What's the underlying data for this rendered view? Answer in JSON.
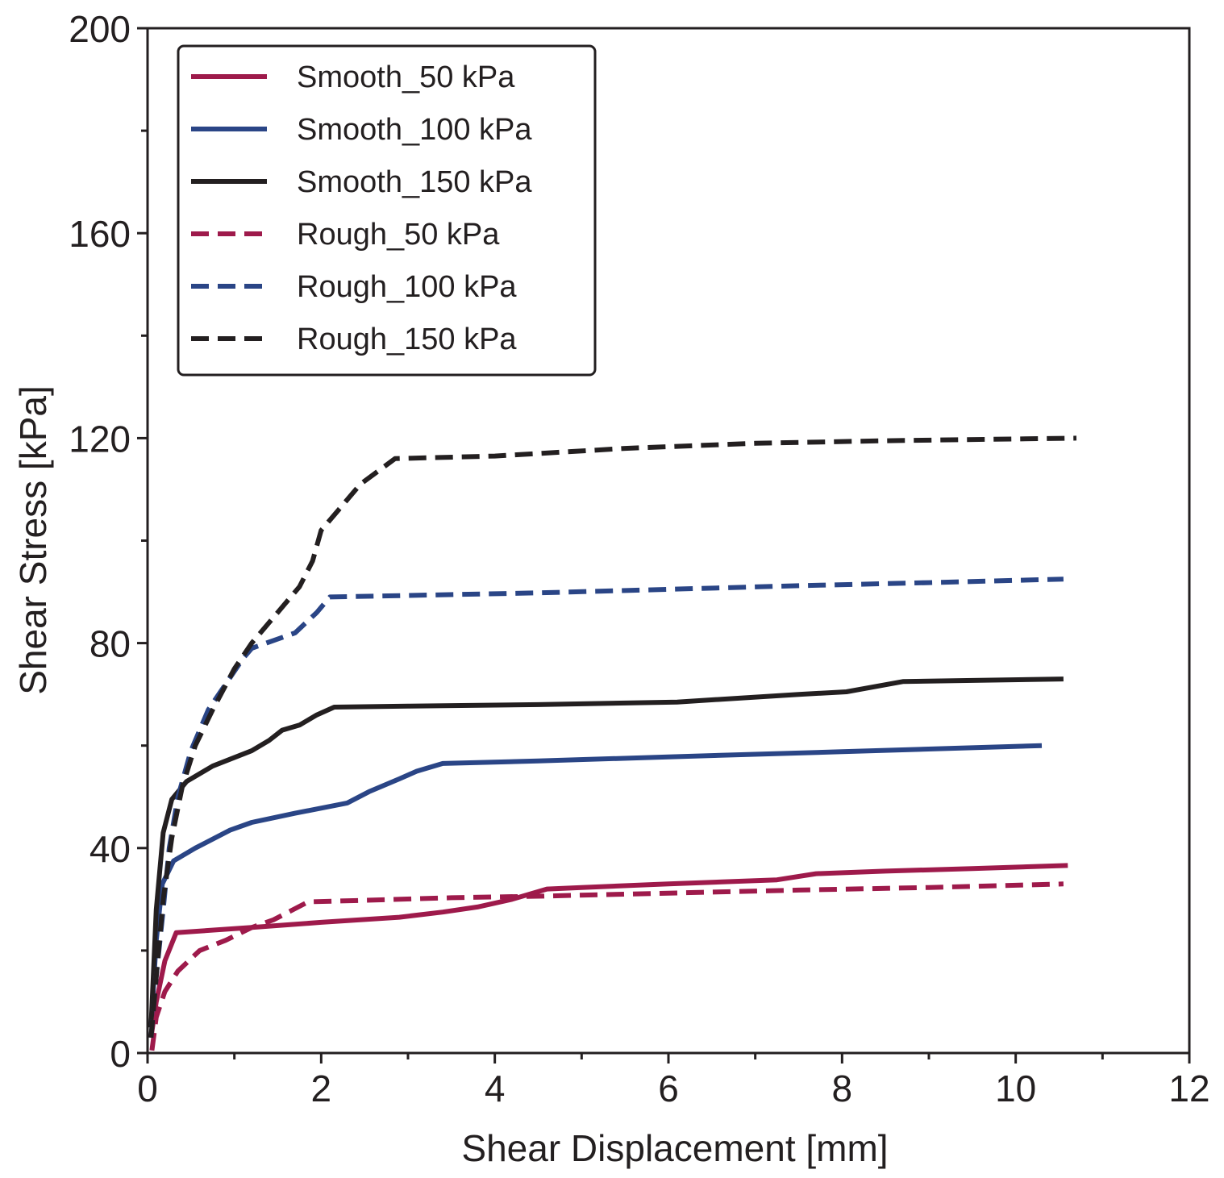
{
  "chart_data": {
    "type": "line",
    "title": "",
    "xlabel": "Shear Displacement [mm]",
    "ylabel": "Shear Stress [kPa]",
    "xlim": [
      0,
      12
    ],
    "ylim": [
      0,
      200
    ],
    "xticks": [
      0,
      2,
      4,
      6,
      8,
      10,
      12
    ],
    "yticks": [
      0,
      40,
      80,
      120,
      160,
      200
    ],
    "xticks_minor": [
      1,
      3,
      5,
      7,
      9,
      11
    ],
    "yticks_minor": [
      20,
      60,
      100,
      140,
      180
    ],
    "grid": false,
    "legend_position": "top-left",
    "series": [
      {
        "name": "Smooth_50 kPa",
        "color": "#9e1a4b",
        "style": "solid",
        "x": [
          0.04,
          0.1,
          0.2,
          0.33,
          1.2,
          2.0,
          2.9,
          3.4,
          3.8,
          4.2,
          4.6,
          5.0,
          6.0,
          7.25,
          7.7,
          8.5,
          9.5,
          10.6
        ],
        "y": [
          3,
          10,
          18,
          23.5,
          24.5,
          25.5,
          26.5,
          27.5,
          28.5,
          30,
          32,
          32.3,
          33,
          33.8,
          35,
          35.5,
          36,
          36.6
        ]
      },
      {
        "name": "Smooth_100 kPa",
        "color": "#2a4586",
        "style": "solid",
        "x": [
          0.04,
          0.1,
          0.17,
          0.3,
          0.55,
          0.95,
          1.2,
          1.7,
          2.3,
          2.55,
          2.9,
          3.1,
          3.4,
          4.5,
          6.0,
          8.0,
          10.3
        ],
        "y": [
          5,
          22,
          33,
          37.5,
          40,
          43.5,
          45,
          46.8,
          48.8,
          51,
          53.5,
          55,
          56.5,
          57,
          57.8,
          58.8,
          60
        ]
      },
      {
        "name": "Smooth_150 kPa",
        "color": "#231f20",
        "style": "solid",
        "x": [
          0.04,
          0.1,
          0.18,
          0.28,
          0.45,
          0.75,
          1.2,
          1.4,
          1.55,
          1.75,
          1.95,
          2.15,
          3.0,
          4.5,
          6.1,
          7.5,
          8.05,
          8.7,
          10.55
        ],
        "y": [
          5,
          28,
          43,
          49.5,
          53,
          56,
          59,
          61,
          63,
          64,
          66,
          67.5,
          67.7,
          68,
          68.5,
          70,
          70.5,
          72.5,
          73
        ]
      },
      {
        "name": "Rough_50 kPa",
        "color": "#9e1a4b",
        "style": "dashed",
        "x": [
          0.05,
          0.1,
          0.2,
          0.35,
          0.6,
          0.9,
          1.2,
          1.45,
          1.85,
          2.5,
          3.5,
          4.5,
          6.0,
          7.5,
          9.0,
          10.55
        ],
        "y": [
          0.5,
          7,
          12,
          16,
          20,
          22,
          24.5,
          26,
          29.5,
          29.8,
          30.3,
          30.6,
          31.2,
          31.8,
          32.3,
          33
        ]
      },
      {
        "name": "Rough_100 kPa",
        "color": "#2a4586",
        "style": "dashed",
        "x": [
          0.04,
          0.1,
          0.18,
          0.25,
          0.35,
          0.5,
          0.7,
          0.9,
          1.1,
          1.2,
          1.45,
          1.7,
          1.95,
          2.1,
          3.0,
          4.5,
          6.0,
          7.5,
          9.0,
          10.55
        ],
        "y": [
          3,
          15,
          28,
          40,
          50,
          59,
          67,
          72,
          77,
          79,
          80.5,
          82,
          86,
          89,
          89.3,
          89.8,
          90.5,
          91.2,
          91.8,
          92.5
        ]
      },
      {
        "name": "Rough_150 kPa",
        "color": "#231f20",
        "style": "dashed",
        "x": [
          0.04,
          0.1,
          0.18,
          0.28,
          0.4,
          0.55,
          0.75,
          1.0,
          1.2,
          1.4,
          1.55,
          1.75,
          1.9,
          2.0,
          2.2,
          2.45,
          2.85,
          4.0,
          5.5,
          7.0,
          8.5,
          10.7
        ],
        "y": [
          3,
          15,
          30,
          42,
          52,
          60,
          67,
          75,
          80,
          84,
          87,
          91,
          96,
          102,
          106,
          111,
          116,
          116.5,
          118,
          119,
          119.5,
          120
        ]
      }
    ]
  }
}
